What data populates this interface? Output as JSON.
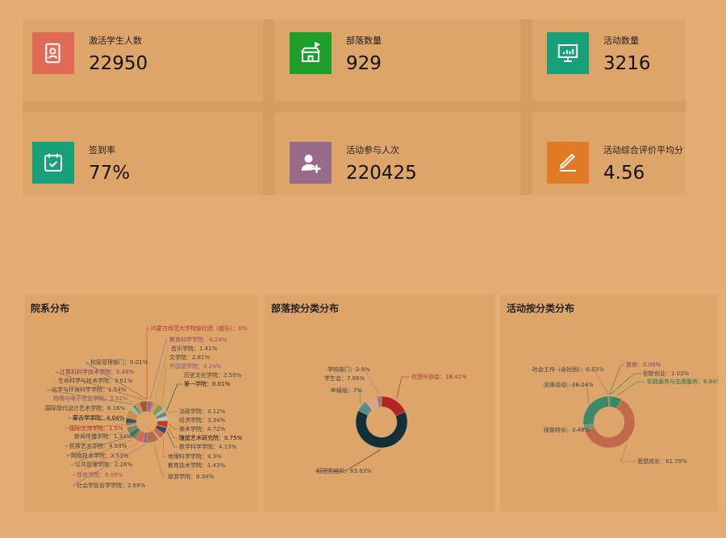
{
  "stats": [
    {
      "label": "激活学生人数",
      "value": "22950",
      "color": "#e06b55",
      "icon": "contact-book-icon"
    },
    {
      "label": "部落数量",
      "value": "929",
      "color": "#1e9e2c",
      "icon": "house-flag-icon"
    },
    {
      "label": "活动数量",
      "value": "3216",
      "color": "#17a07a",
      "icon": "presentation-chart-icon"
    },
    {
      "label": "签到率",
      "value": "77%",
      "color": "#17a07a",
      "icon": "calendar-check-icon"
    },
    {
      "label": "活动参与人次",
      "value": "220425",
      "color": "#9a6a8a",
      "icon": "user-add-icon"
    },
    {
      "label": "活动综合评价平均分",
      "value": "4.56",
      "color": "#e07a25",
      "icon": "pencil-edit-icon"
    }
  ],
  "panels": {
    "college": {
      "title": "院系分布"
    },
    "tribe": {
      "title": "部落按分类分布"
    },
    "activity": {
      "title": "活动按分类分布"
    }
  },
  "chart_data": [
    {
      "type": "pie",
      "title": "院系分布",
      "series": [
        {
          "values": [
            {
              "name": "内蒙古师范大学校级社团（盛乐）",
              "value": 0
            },
            {
              "name": "教育科学学院",
              "value": 4.24
            },
            {
              "name": "音乐学院",
              "value": 1.41
            },
            {
              "name": "文学院",
              "value": 2.81
            },
            {
              "name": "外国语学院",
              "value": 4.24
            },
            {
              "name": "历史文化学院",
              "value": 2.59
            },
            {
              "name": "第一学院",
              "value": 0.01
            },
            {
              "name": "法政学院",
              "value": 3.12
            },
            {
              "name": "经济学院",
              "value": 3.34
            },
            {
              "name": "美术学院",
              "value": 4.72
            },
            {
              "name": "雕塑艺术研究院",
              "value": 0.75
            },
            {
              "name": "数学科学学院",
              "value": 4.13
            },
            {
              "name": "地理科学学院",
              "value": 4.3
            },
            {
              "name": "教育技术学院",
              "value": 1.43
            },
            {
              "name": "旅游学院",
              "value": 8.34
            },
            {
              "name": "社会学民俗学学院",
              "value": 2.88
            },
            {
              "name": "体育学院",
              "value": 6.09
            },
            {
              "name": "公共管理学院",
              "value": 2.26
            },
            {
              "name": "网络技术学院",
              "value": 3.53
            },
            {
              "name": "民族艺术学院",
              "value": 4.53
            },
            {
              "name": "新闻传播学院",
              "value": 1.34
            },
            {
              "name": "国际交流学院",
              "value": 1.5
            },
            {
              "name": "蒙古学学院",
              "value": 4.04
            },
            {
              "name": "国际现代设计艺术学院",
              "value": 6.16
            },
            {
              "name": "物理与电子信息学院",
              "value": 3.31
            },
            {
              "name": "化学与环境科学学院",
              "value": 1.54
            },
            {
              "name": "生命科学与技术学院",
              "value": 3.61
            },
            {
              "name": "计算机科学技术学院",
              "value": 5.48
            },
            {
              "name": "校级管理部门",
              "value": 0.01
            }
          ]
        }
      ]
    },
    {
      "type": "pie",
      "title": "部落按分类分布",
      "series": [
        {
          "values": [
            {
              "name": "社团与协会",
              "value": 18.41
            },
            {
              "name": "班团党组织",
              "value": 63.83
            },
            {
              "name": "年级组",
              "value": 7
            },
            {
              "name": "学生会",
              "value": 7.86
            },
            {
              "name": "学校部门",
              "value": 2.9
            }
          ]
        }
      ]
    },
    {
      "type": "pie",
      "title": "活动按分类分布",
      "series": [
        {
          "values": [
            {
              "name": "其他",
              "value": 0.09
            },
            {
              "name": "创新创业",
              "value": 1.03
            },
            {
              "name": "实践服务与志愿服务",
              "value": 6.84
            },
            {
              "name": "思想成长",
              "value": 61.79
            },
            {
              "name": "技能特长",
              "value": 3.48
            },
            {
              "name": "文体活动",
              "value": 26.24
            },
            {
              "name": "社会工作（含社团）",
              "value": 0.53
            }
          ]
        }
      ]
    }
  ],
  "colors": {
    "college": [
      "#c0392b",
      "#9a6a8a",
      "#b08a6a",
      "#c9a24a",
      "#7a9a5a",
      "#a8b9a8",
      "#1f3b3b",
      "#5a8a88",
      "#b8c8b8",
      "#c0392b",
      "#7a5a3a",
      "#2a4a6a",
      "#c96a4a",
      "#e0a070",
      "#b07050",
      "#8a6a9a",
      "#d06a5a",
      "#6a8a4a",
      "#3a6a7a",
      "#7a8a5a",
      "#a0b080",
      "#c05a4a",
      "#2f5e5a",
      "#d08a4a",
      "#9ac0a0",
      "#4a7a6a",
      "#c2945a",
      "#a05a3a",
      "#5a6a7a"
    ],
    "tribe": [
      "#b22323",
      "#142f35",
      "#4f8f86",
      "#d8a58f",
      "#9a7d7d"
    ],
    "activity": [
      "#2b7b7c",
      "#1e6e5a",
      "#2f8a6a",
      "#c06a4a",
      "#6a9a7a",
      "#3a8a6a",
      "#a06a8a"
    ]
  }
}
